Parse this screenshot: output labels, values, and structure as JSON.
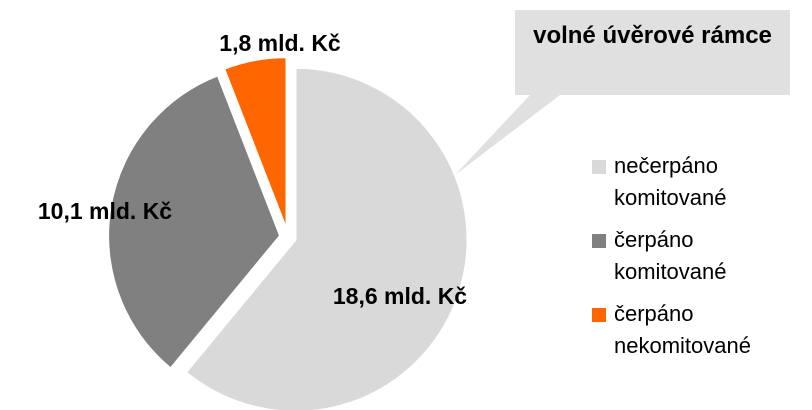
{
  "chart_data": {
    "type": "pie",
    "annotation": "volné úvěrové rámce",
    "categories": [
      "nečerpáno komitované",
      "čerpáno komitované",
      "čerpáno nekomitované"
    ],
    "values": [
      18.6,
      10.1,
      1.8
    ],
    "value_labels": [
      "18,6 mld. Kč",
      "10,1 mld. Kč",
      "1,8 mld. Kč"
    ],
    "colors": [
      "#d9d9d9",
      "#808080",
      "#ff6600"
    ],
    "legend": "right"
  }
}
